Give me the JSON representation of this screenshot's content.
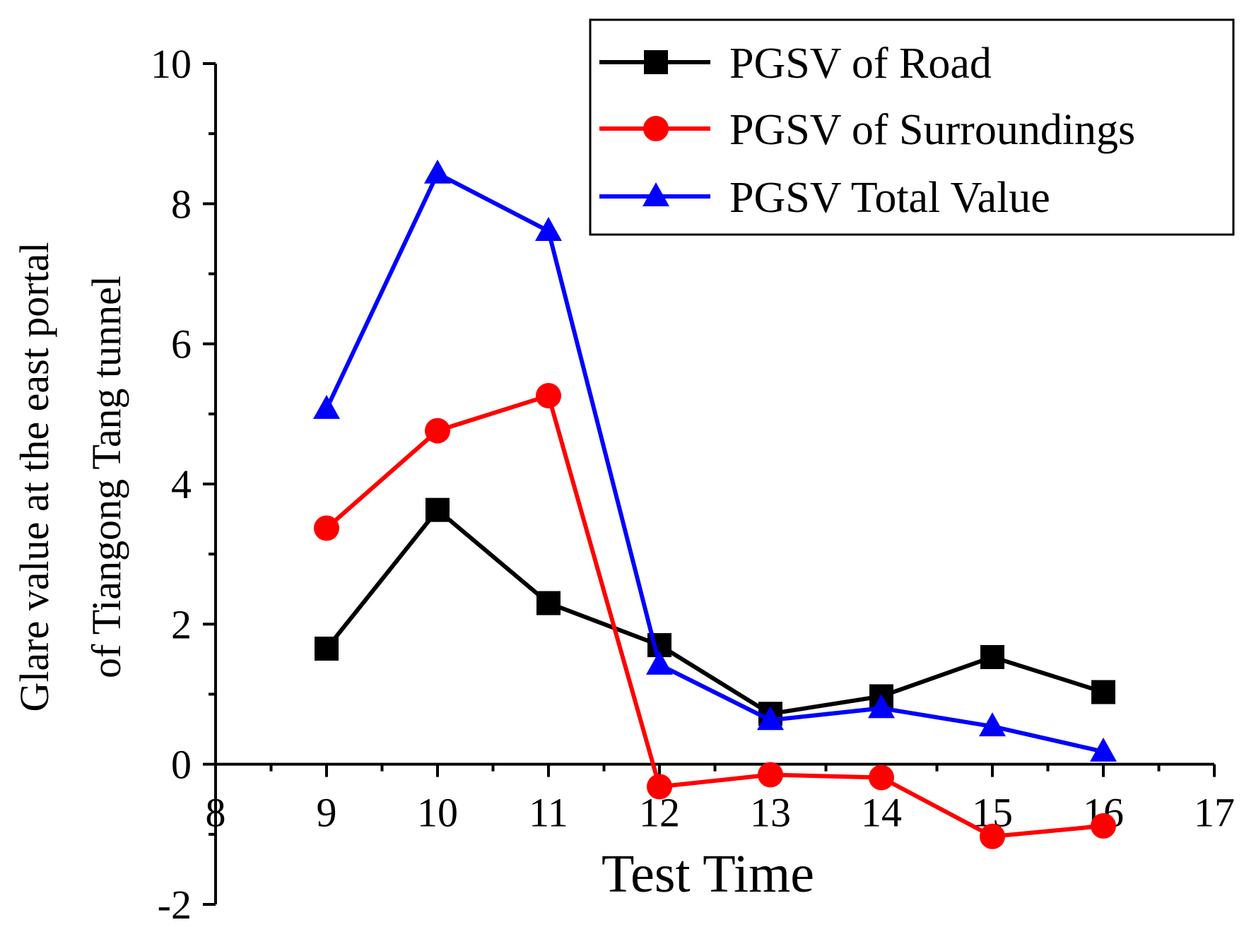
{
  "chart_data": {
    "type": "line",
    "xlabel": "Test Time",
    "ylabel_lines": [
      "Glare value at the east portal",
      "of Tiangong Tang tunnel"
    ],
    "xlim": [
      8,
      17
    ],
    "ylim": [
      -2,
      10
    ],
    "xticks": [
      8,
      9,
      10,
      11,
      12,
      13,
      14,
      15,
      16,
      17
    ],
    "yticks": [
      -2,
      0,
      2,
      4,
      6,
      8,
      10
    ],
    "x": [
      9,
      10,
      11,
      12,
      13,
      14,
      15,
      16
    ],
    "legend_position": "top-right",
    "grid": false,
    "series": [
      {
        "name": "PGSV of Road",
        "color": "#000000",
        "marker": "square",
        "values": [
          1.65,
          3.63,
          2.3,
          1.7,
          0.72,
          0.97,
          1.53,
          1.03
        ]
      },
      {
        "name": "PGSV of Surroundings",
        "color": "#ff0000",
        "marker": "circle",
        "values": [
          3.37,
          4.76,
          5.26,
          -0.32,
          -0.15,
          -0.19,
          -1.03,
          -0.88
        ]
      },
      {
        "name": "PGSV Total Value",
        "color": "#0000ff",
        "marker": "triangle",
        "values": [
          5.07,
          8.43,
          7.61,
          1.42,
          0.63,
          0.8,
          0.54,
          0.18
        ]
      }
    ]
  }
}
